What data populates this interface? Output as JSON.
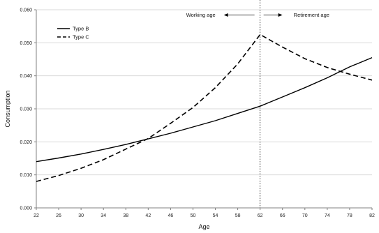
{
  "chart_data": {
    "type": "line",
    "xlabel": "Age",
    "ylabel": "Consumption",
    "xlim": [
      22,
      82
    ],
    "ylim": [
      0.0,
      0.06
    ],
    "x_ticks": [
      22,
      26,
      30,
      34,
      38,
      42,
      46,
      50,
      54,
      58,
      62,
      66,
      70,
      74,
      78,
      82
    ],
    "y_ticks": [
      0.0,
      0.01,
      0.02,
      0.03,
      0.04,
      0.05,
      0.06
    ],
    "y_tick_labels": [
      "0.000",
      "0.010",
      "0.020",
      "0.030",
      "0.040",
      "0.050",
      "0.060"
    ],
    "grid": "horizontal",
    "legend_position": "top-left",
    "colors": {
      "series": "#000000",
      "grid": "#d9d9d9",
      "axis": "#808080"
    },
    "series": [
      {
        "name": "Type B",
        "style": "solid",
        "x": [
          22,
          26,
          30,
          34,
          38,
          42,
          46,
          50,
          54,
          58,
          62,
          66,
          70,
          74,
          78,
          82
        ],
        "y": [
          0.014,
          0.0151,
          0.0163,
          0.0177,
          0.0192,
          0.0209,
          0.0226,
          0.0245,
          0.0264,
          0.0286,
          0.0308,
          0.0336,
          0.0364,
          0.0394,
          0.0427,
          0.0455
        ]
      },
      {
        "name": "Type C",
        "style": "dashed",
        "x": [
          22,
          26,
          30,
          34,
          38,
          42,
          46,
          50,
          54,
          58,
          62,
          66,
          70,
          74,
          78,
          82
        ],
        "y": [
          0.008,
          0.0098,
          0.012,
          0.0146,
          0.0178,
          0.021,
          0.0256,
          0.0304,
          0.0364,
          0.0436,
          0.0525,
          0.0487,
          0.0452,
          0.0425,
          0.0405,
          0.0387
        ]
      }
    ],
    "annotations": {
      "divider_age": 62,
      "left_label": "Working age",
      "right_label": "Retirement age"
    }
  }
}
